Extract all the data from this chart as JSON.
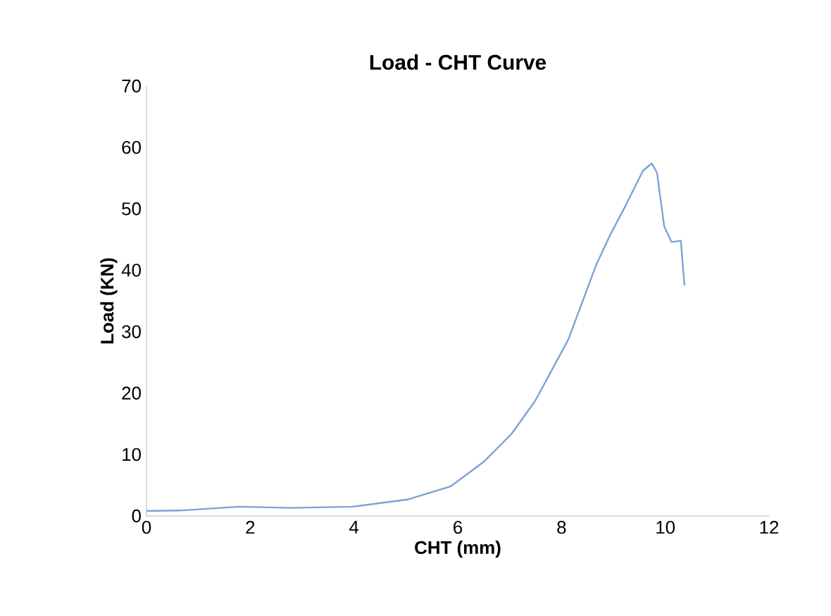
{
  "chart_data": {
    "type": "line",
    "title": "Load - CHT Curve",
    "xlabel": "CHT (mm)",
    "ylabel": "Load (KN)",
    "x": [
      0,
      0.7,
      1.79,
      2.79,
      3.97,
      5.05,
      5.86,
      6.5,
      7.04,
      7.49,
      8.13,
      8.67,
      8.94,
      9.21,
      9.57,
      9.74,
      9.84,
      9.98,
      10.12,
      10.3,
      10.37
    ],
    "values": [
      0.8,
      0.9,
      1.5,
      1.3,
      1.5,
      2.7,
      4.8,
      8.8,
      13.4,
      18.7,
      28.7,
      40.9,
      45.8,
      50.1,
      56.2,
      57.4,
      55.9,
      47.1,
      44.6,
      44.8,
      37.5
    ],
    "color": "#7ba3d6",
    "xlim": [
      0,
      12
    ],
    "ylim": [
      0,
      70
    ],
    "xticks": [
      0,
      2,
      4,
      6,
      8,
      10,
      12
    ],
    "yticks": [
      0,
      10,
      20,
      30,
      40,
      50,
      60,
      70
    ]
  }
}
